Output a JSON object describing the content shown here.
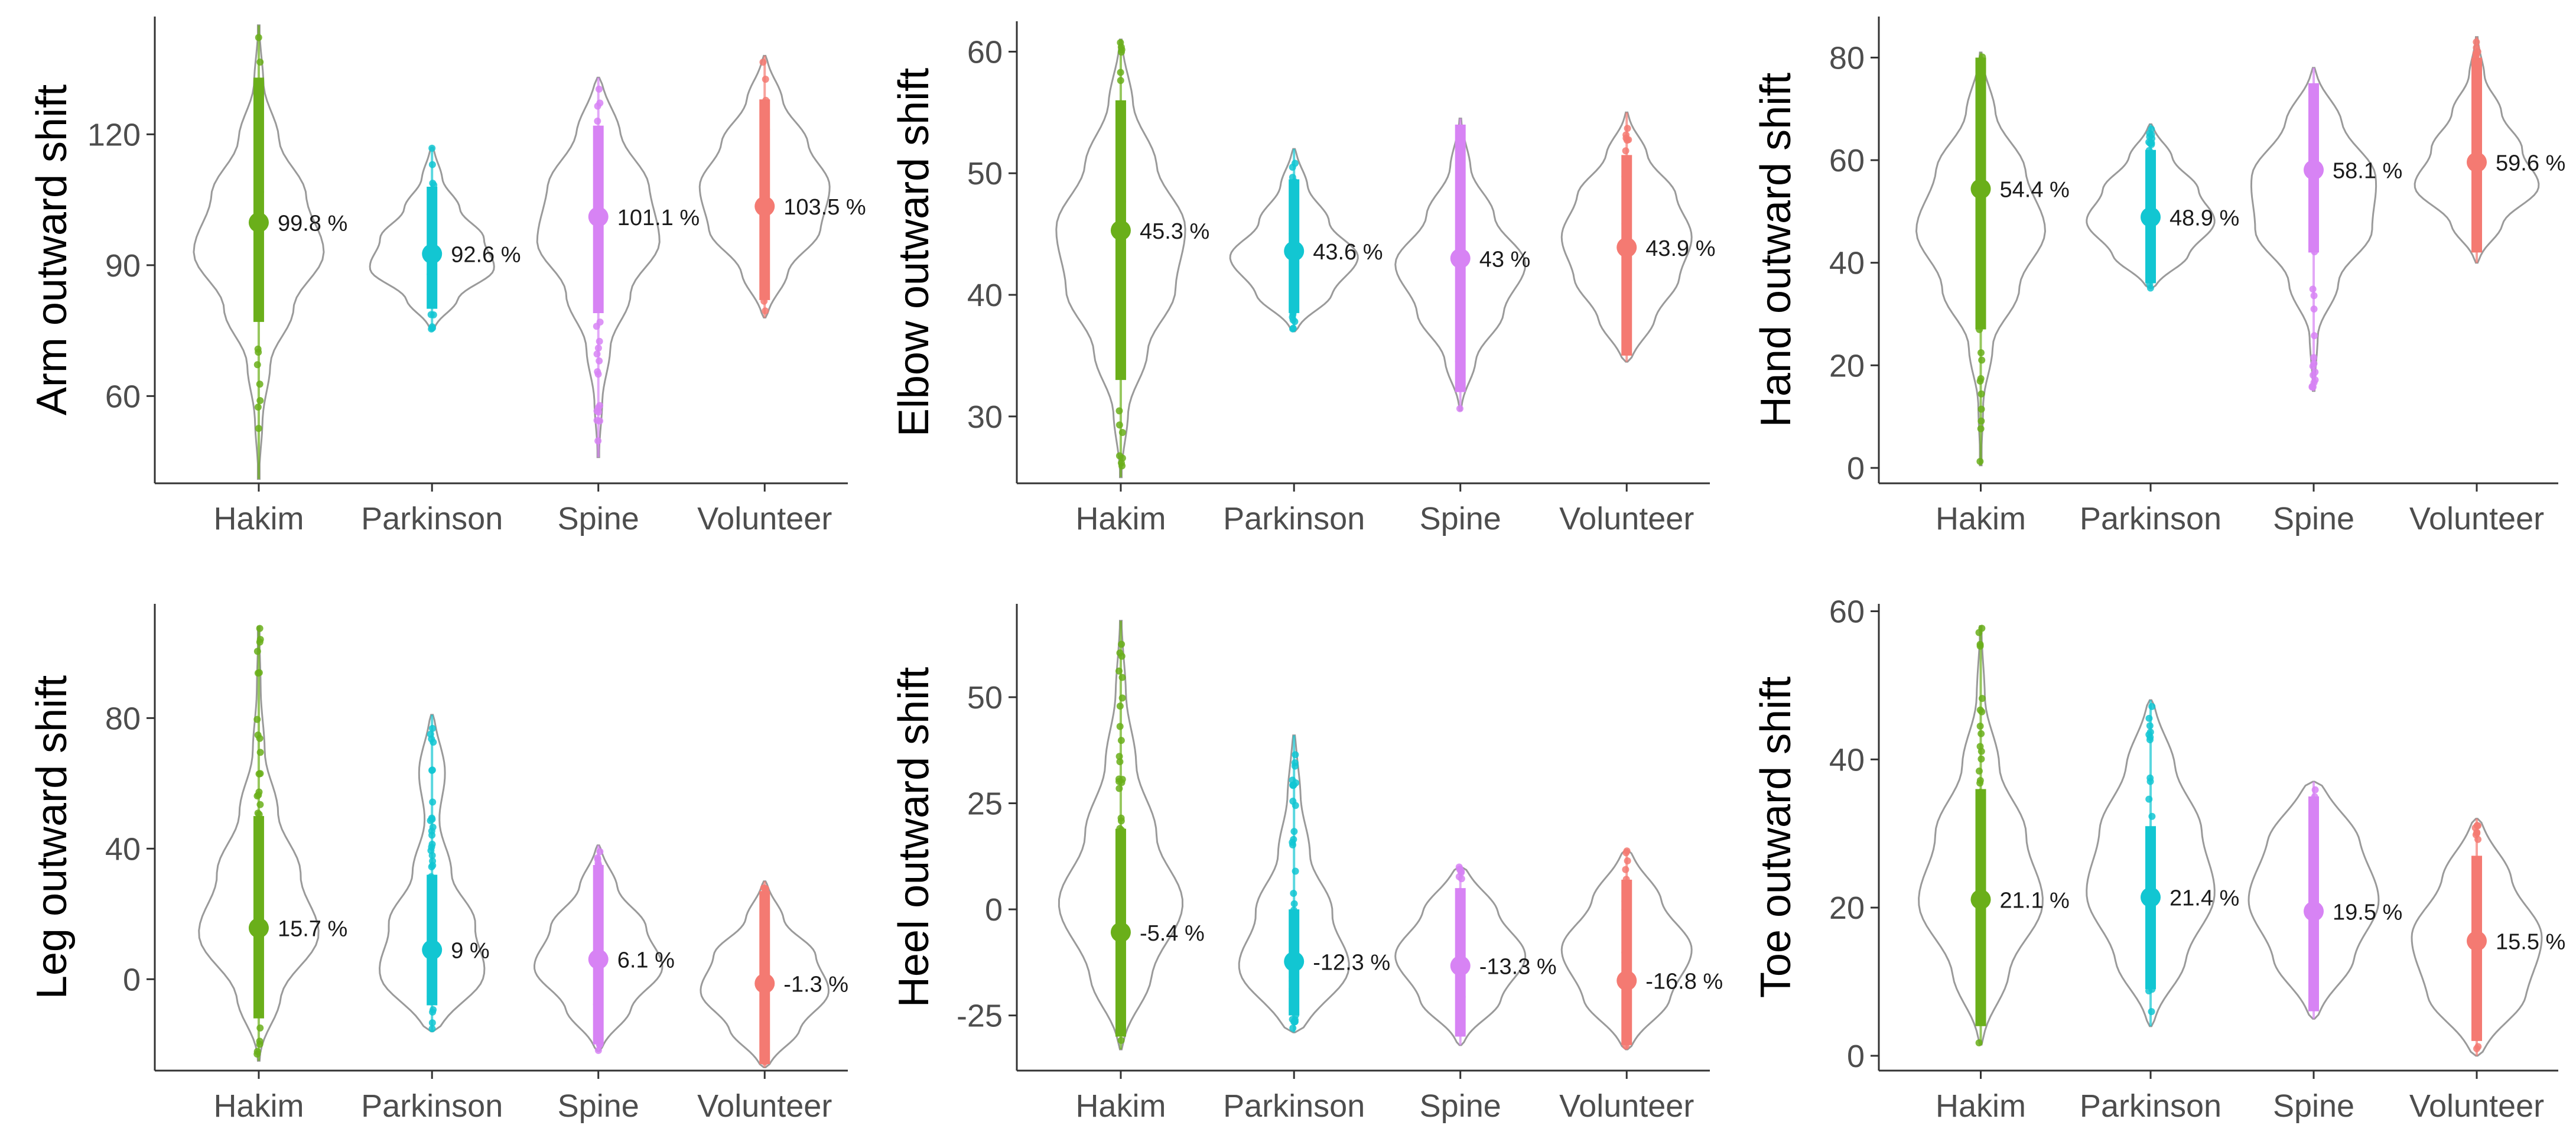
{
  "categories": [
    "Hakim",
    "Parkinson",
    "Spine",
    "Volunteer"
  ],
  "colors": {
    "Hakim": "#6aaf1a",
    "Parkinson": "#12c6d2",
    "Spine": "#d783f4",
    "Volunteer": "#f47a72"
  },
  "chart_data": [
    {
      "type": "violin",
      "ylabel": "Arm outward shift",
      "ylim": [
        40,
        147
      ],
      "yticks": [
        60,
        90,
        120
      ],
      "series": [
        {
          "name": "Hakim",
          "mean": 99.8,
          "label": "99.8 %",
          "range": [
            41,
            145
          ],
          "ci": [
            77,
            133
          ],
          "density_widths": [
            0.02,
            0.08,
            0.2,
            0.55,
            1.0,
            0.75,
            0.35,
            0.1,
            0.03
          ]
        },
        {
          "name": "Parkinson",
          "mean": 92.6,
          "label": "92.6 %",
          "range": [
            75,
            117
          ],
          "ci": [
            80,
            108
          ],
          "density_widths": [
            0.1,
            0.5,
            1.0,
            0.8,
            0.45,
            0.2,
            0.08
          ]
        },
        {
          "name": "Spine",
          "mean": 101.1,
          "label": "101.1 %",
          "range": [
            46,
            133
          ],
          "ci": [
            79,
            122
          ],
          "density_widths": [
            0.03,
            0.08,
            0.2,
            0.5,
            0.95,
            0.85,
            0.45,
            0.15
          ]
        },
        {
          "name": "Volunteer",
          "mean": 103.5,
          "label": "103.5 %",
          "range": [
            78,
            138
          ],
          "ci": [
            82,
            128
          ],
          "density_widths": [
            0.12,
            0.45,
            0.9,
            1.0,
            0.7,
            0.35,
            0.1
          ]
        }
      ]
    },
    {
      "type": "violin",
      "ylabel": "Elbow outward shift",
      "ylim": [
        24.5,
        62.5
      ],
      "yticks": [
        30,
        40,
        50,
        60
      ],
      "series": [
        {
          "name": "Hakim",
          "mean": 45.3,
          "label": "45.3 %",
          "range": [
            25,
            61
          ],
          "ci": [
            33,
            56
          ],
          "density_widths": [
            0.03,
            0.15,
            0.45,
            0.85,
            1.0,
            0.6,
            0.25,
            0.06
          ]
        },
        {
          "name": "Parkinson",
          "mean": 43.6,
          "label": "43.6 %",
          "range": [
            37,
            52
          ],
          "ci": [
            38.5,
            49.5
          ],
          "density_widths": [
            0.15,
            0.7,
            1.0,
            0.55,
            0.25,
            0.08
          ]
        },
        {
          "name": "Spine",
          "mean": 43.0,
          "label": "43 %",
          "range": [
            30.5,
            54.5
          ],
          "ci": [
            32,
            54
          ],
          "density_widths": [
            0.05,
            0.3,
            0.7,
            1.0,
            0.55,
            0.2,
            0.05
          ]
        },
        {
          "name": "Volunteer",
          "mean": 43.9,
          "label": "43.9 %",
          "range": [
            34.5,
            55
          ],
          "ci": [
            35,
            51.5
          ],
          "density_widths": [
            0.2,
            0.55,
            0.85,
            1.0,
            0.8,
            0.4,
            0.08
          ]
        }
      ]
    },
    {
      "type": "violin",
      "ylabel": "Hand outward shift",
      "ylim": [
        -3,
        88
      ],
      "yticks": [
        0,
        20,
        40,
        60,
        80
      ],
      "series": [
        {
          "name": "Hakim",
          "mean": 54.4,
          "label": "54.4 %",
          "range": [
            0.5,
            81
          ],
          "ci": [
            27,
            80
          ],
          "density_widths": [
            0.02,
            0.05,
            0.2,
            0.6,
            1.0,
            0.75,
            0.3,
            0.05
          ]
        },
        {
          "name": "Parkinson",
          "mean": 48.9,
          "label": "48.9 %",
          "range": [
            35,
            67
          ],
          "ci": [
            36,
            62
          ],
          "density_widths": [
            0.2,
            0.7,
            1.0,
            0.75,
            0.4,
            0.1
          ]
        },
        {
          "name": "Spine",
          "mean": 58.1,
          "label": "58.1 %",
          "range": [
            15,
            78
          ],
          "ci": [
            42,
            75
          ],
          "density_widths": [
            0.03,
            0.08,
            0.4,
            0.9,
            1.0,
            0.55,
            0.1
          ]
        },
        {
          "name": "Volunteer",
          "mean": 59.6,
          "label": "59.6 %",
          "range": [
            40,
            84
          ],
          "ci": [
            42,
            80
          ],
          "density_widths": [
            0.1,
            0.5,
            1.0,
            0.7,
            0.4,
            0.15,
            0.05
          ]
        }
      ]
    },
    {
      "type": "violin",
      "ylabel": "Leg outward shift",
      "ylim": [
        -28,
        115
      ],
      "yticks": [
        0,
        40,
        80
      ],
      "series": [
        {
          "name": "Hakim",
          "mean": 15.7,
          "label": "15.7 %",
          "range": [
            -25,
            108
          ],
          "ci": [
            -12,
            50
          ],
          "density_widths": [
            0.05,
            0.45,
            1.0,
            0.65,
            0.3,
            0.1,
            0.04,
            0.02
          ]
        },
        {
          "name": "Parkinson",
          "mean": 9.0,
          "label": "9 %",
          "range": [
            -16,
            81
          ],
          "ci": [
            -8,
            32
          ],
          "density_widths": [
            0.35,
            1.0,
            0.7,
            0.3,
            0.12,
            0.25,
            0.1
          ]
        },
        {
          "name": "Spine",
          "mean": 6.1,
          "label": "6.1 %",
          "range": [
            -22,
            41
          ],
          "ci": [
            -20,
            35
          ],
          "density_widths": [
            0.15,
            0.6,
            1.0,
            0.75,
            0.35,
            0.1
          ]
        },
        {
          "name": "Volunteer",
          "mean": -1.3,
          "label": "-1.3 %",
          "range": [
            -27,
            30
          ],
          "ci": [
            -26,
            27
          ],
          "density_widths": [
            0.2,
            0.65,
            1.0,
            0.8,
            0.35,
            0.1
          ]
        }
      ]
    },
    {
      "type": "violin",
      "ylabel": "Heel outward shift",
      "ylim": [
        -38,
        72
      ],
      "yticks": [
        -25,
        0,
        25,
        50
      ],
      "series": [
        {
          "name": "Hakim",
          "mean": -5.4,
          "label": "-5.4 %",
          "range": [
            -33,
            68
          ],
          "ci": [
            -30,
            19
          ],
          "density_widths": [
            0.1,
            0.6,
            1.0,
            0.55,
            0.25,
            0.1,
            0.04
          ]
        },
        {
          "name": "Parkinson",
          "mean": -12.3,
          "label": "-12.3 %",
          "range": [
            -29,
            41
          ],
          "ci": [
            -25,
            0
          ],
          "density_widths": [
            0.4,
            1.0,
            0.6,
            0.25,
            0.12,
            0.06
          ]
        },
        {
          "name": "Spine",
          "mean": -13.3,
          "label": "-13.3 %",
          "range": [
            -32,
            10
          ],
          "ci": [
            -30,
            5
          ],
          "density_widths": [
            0.15,
            0.7,
            1.0,
            0.65,
            0.25
          ]
        },
        {
          "name": "Volunteer",
          "mean": -16.8,
          "label": "-16.8 %",
          "range": [
            -33,
            14
          ],
          "ci": [
            -32,
            7
          ],
          "density_widths": [
            0.2,
            0.75,
            1.0,
            0.6,
            0.2
          ]
        }
      ]
    },
    {
      "type": "violin",
      "ylabel": "Toe outward shift",
      "ylim": [
        -2,
        61
      ],
      "yticks": [
        0,
        20,
        40,
        60
      ],
      "series": [
        {
          "name": "Hakim",
          "mean": 21.1,
          "label": "21.1 %",
          "range": [
            1.5,
            58
          ],
          "ci": [
            4,
            36
          ],
          "density_widths": [
            0.1,
            0.55,
            1.0,
            0.7,
            0.3,
            0.08,
            0.03
          ]
        },
        {
          "name": "Parkinson",
          "mean": 21.4,
          "label": "21.4 %",
          "range": [
            4,
            48
          ],
          "ci": [
            9,
            31
          ],
          "density_widths": [
            0.15,
            0.65,
            1.0,
            0.8,
            0.45,
            0.15
          ]
        },
        {
          "name": "Spine",
          "mean": 19.5,
          "label": "19.5 %",
          "range": [
            5,
            37
          ],
          "ci": [
            6,
            35
          ],
          "density_widths": [
            0.2,
            0.7,
            1.0,
            0.8,
            0.35
          ]
        },
        {
          "name": "Volunteer",
          "mean": 15.5,
          "label": "15.5 %",
          "range": [
            0,
            32
          ],
          "ci": [
            2,
            27
          ],
          "density_widths": [
            0.25,
            0.85,
            1.0,
            0.6,
            0.2
          ]
        }
      ]
    }
  ]
}
